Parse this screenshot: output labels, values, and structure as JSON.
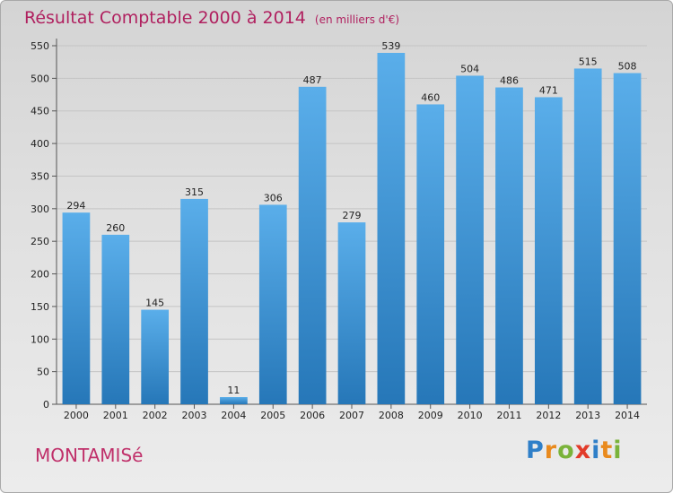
{
  "header": {
    "title": "Résultat Comptable 2000 à 2014",
    "subtitle": "(en milliers d'€)"
  },
  "commune": "MONTAMISé",
  "logo": {
    "text": "Proxiti",
    "letters": [
      {
        "ch": "P",
        "color": "#2f7fc8"
      },
      {
        "ch": "r",
        "color": "#e98a1d"
      },
      {
        "ch": "o",
        "color": "#7ab33a"
      },
      {
        "ch": "x",
        "color": "#e23b2a"
      },
      {
        "ch": "i",
        "color": "#2f7fc8"
      },
      {
        "ch": "t",
        "color": "#e98a1d"
      },
      {
        "ch": "i",
        "color": "#7ab33a"
      }
    ]
  },
  "colors": {
    "bar_top": "#5aaeea",
    "bar_bottom": "#2677b8",
    "title": "#b0205f"
  },
  "chart_data": {
    "type": "bar",
    "title": "Résultat Comptable 2000 à 2014",
    "subtitle": "(en milliers d'€)",
    "categories": [
      "2000",
      "2001",
      "2002",
      "2003",
      "2004",
      "2005",
      "2006",
      "2007",
      "2008",
      "2009",
      "2010",
      "2011",
      "2012",
      "2013",
      "2014"
    ],
    "values": [
      294,
      260,
      145,
      315,
      11,
      306,
      487,
      279,
      539,
      460,
      504,
      486,
      471,
      515,
      508
    ],
    "ylim": [
      0,
      550
    ],
    "yticks": [
      0,
      50,
      100,
      150,
      200,
      250,
      300,
      350,
      400,
      450,
      500,
      550
    ],
    "grid": true,
    "legend": "none"
  }
}
